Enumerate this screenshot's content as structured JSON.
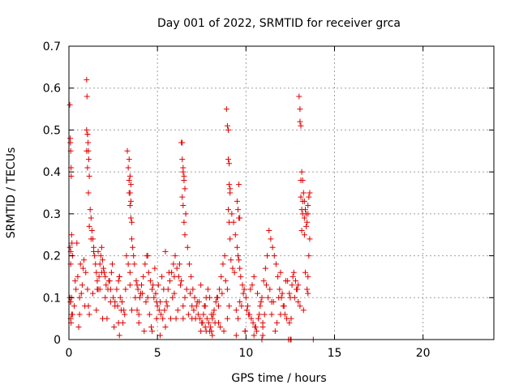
{
  "chart_data": {
    "type": "scatter",
    "title": "Day 001 of 2022, SRMTID for receiver grca",
    "xlabel": "GPS time / hours",
    "ylabel": "SRMTID / TECUs",
    "xlim": [
      0,
      24
    ],
    "ylim": [
      0,
      0.7
    ],
    "xticks": [
      0,
      5,
      10,
      15,
      20
    ],
    "xtick_labels": [
      "0",
      "5",
      "10",
      "15",
      "20"
    ],
    "yticks": [
      0,
      0.1,
      0.2,
      0.3,
      0.4,
      0.5,
      0.6,
      0.7
    ],
    "ytick_labels": [
      "0",
      "0.1",
      "0.2",
      "0.3",
      "0.4",
      "0.5",
      "0.6",
      "0.7"
    ],
    "grid": true,
    "marker": "+",
    "color": "#e00000",
    "series": [
      {
        "x": [
          0.05,
          0.07,
          0.08,
          0.1,
          0.12,
          0.13,
          0.15,
          0.17,
          0.2,
          0.05,
          0.08,
          0.1,
          0.12,
          0.06,
          0.1,
          0.15,
          0.3,
          0.4,
          0.5,
          0.6,
          0.7,
          0.8,
          0.95,
          1.0,
          1.02,
          1.05,
          1.08,
          1.1,
          1.12,
          1.15,
          1.2,
          1.25,
          1.3,
          1.35,
          1.4,
          1.45,
          1.5,
          1.55,
          1.6,
          1.65,
          1.7,
          1.75,
          1.8,
          1.85,
          1.9,
          1.95,
          2.0,
          2.05,
          2.1,
          2.2,
          2.3,
          2.4,
          2.5,
          2.6,
          2.7,
          2.8,
          2.9,
          3.0,
          3.1,
          3.2,
          3.3,
          3.35,
          3.4,
          3.45,
          3.5,
          3.55,
          3.6,
          3.65,
          3.7,
          3.8,
          3.9,
          4.0,
          4.1,
          4.2,
          4.3,
          4.4,
          4.5,
          4.6,
          4.7,
          4.8,
          4.9,
          5.0,
          5.1,
          5.2,
          5.3,
          5.4,
          5.5,
          5.6,
          5.7,
          5.8,
          5.9,
          6.0,
          6.1,
          6.2,
          6.3,
          6.35,
          6.4,
          6.45,
          6.5,
          6.55,
          6.6,
          6.7,
          6.8,
          6.9,
          7.0,
          7.1,
          7.2,
          7.3,
          7.4,
          7.5,
          7.6,
          7.7,
          7.8,
          7.9,
          8.0,
          8.1,
          8.2,
          8.3,
          8.4,
          8.5,
          8.6,
          8.7,
          8.8,
          8.9,
          8.95,
          9.0,
          9.05,
          9.1,
          9.2,
          9.3,
          9.4,
          9.5,
          9.55,
          9.6,
          9.65,
          9.7,
          9.8,
          9.9,
          10.0,
          10.1,
          10.2,
          10.3,
          10.4,
          10.5,
          10.6,
          10.7,
          10.8,
          10.9,
          11.0,
          11.1,
          11.2,
          11.3,
          11.4,
          11.5,
          11.6,
          11.7,
          11.8,
          11.9,
          12.0,
          12.1,
          12.2,
          12.3,
          12.4,
          12.5,
          12.6,
          12.7,
          12.8,
          12.9,
          13.0,
          13.05,
          13.1,
          13.15,
          13.2,
          13.25,
          13.3,
          13.35,
          13.4,
          13.45,
          13.5,
          13.55,
          13.6,
          0.2,
          0.6,
          1.1,
          1.6,
          2.15,
          2.6,
          3.05,
          3.55,
          4.05,
          4.55,
          5.05,
          5.55,
          6.05,
          6.55,
          7.05,
          7.55,
          8.05,
          8.55,
          9.05,
          9.55,
          10.05,
          10.55,
          11.05,
          11.55,
          12.05,
          12.55,
          13.05,
          0.35,
          0.85,
          1.35,
          1.85,
          2.35,
          2.85,
          3.35,
          3.85,
          4.35,
          4.85,
          5.35,
          5.85,
          6.35,
          6.85,
          7.35,
          7.85,
          8.35,
          8.85,
          9.35,
          9.85,
          10.35,
          10.85,
          11.35,
          11.85,
          12.35,
          12.85,
          13.35,
          0.45,
          0.9,
          1.4,
          1.9,
          2.45,
          2.95,
          3.45,
          3.95,
          4.45,
          4.95,
          5.45,
          5.95,
          6.45,
          6.95,
          7.45,
          7.95,
          8.45,
          8.95,
          9.45,
          9.95,
          10.45,
          10.95,
          11.45,
          11.95,
          12.45,
          12.95,
          13.45,
          0.55,
          1.05,
          1.55,
          2.05,
          2.55,
          3.15,
          3.75,
          4.25,
          4.75,
          5.25,
          5.75,
          6.25,
          6.75,
          7.25,
          7.75,
          8.25,
          8.75,
          9.25,
          9.75,
          10.25,
          10.75,
          11.25,
          11.75,
          12.25,
          12.75,
          13.25,
          0.65,
          1.15,
          1.65,
          2.25,
          2.75,
          3.25,
          3.85,
          4.15,
          4.65,
          5.15,
          5.65,
          6.15,
          6.65,
          7.15,
          7.65,
          8.15,
          8.65,
          9.15,
          9.65,
          10.15,
          10.65,
          11.15,
          11.65,
          12.15,
          12.65,
          13.15,
          13.55,
          0.75,
          1.25,
          1.75,
          2.35,
          2.85,
          3.45,
          3.95,
          4.45,
          4.95,
          5.45,
          5.95,
          6.45,
          6.95,
          7.45,
          7.95,
          8.45,
          8.95,
          9.45,
          9.95,
          10.45,
          10.95,
          11.45,
          11.95,
          12.45,
          12.95,
          13.5,
          1.0,
          1.05,
          3.4,
          3.45,
          3.5,
          6.4,
          6.45,
          6.5,
          9.0,
          9.05,
          9.1,
          9.6,
          9.65,
          13.05,
          13.1,
          13.2,
          13.3,
          13.4,
          13.5,
          13.6,
          0.1,
          0.1,
          0.15,
          1.0,
          1.05,
          1.1,
          1.15,
          3.4,
          3.45,
          3.5,
          3.55,
          6.4,
          6.45,
          6.5,
          6.55,
          9.0,
          9.05,
          9.1,
          9.5,
          9.55,
          9.6,
          13.1,
          13.15,
          13.2,
          13.3,
          12.5,
          12.55,
          10.9,
          10.95,
          8.05,
          8.1,
          7.7,
          7.75,
          5.15,
          4.7,
          2.8,
          2.85,
          13.5,
          13.8
        ],
        "y": [
          0.56,
          0.48,
          0.47,
          0.45,
          0.41,
          0.39,
          0.25,
          0.23,
          0.2,
          0.1,
          0.09,
          0.05,
          0.04,
          0.22,
          0.18,
          0.1,
          0.08,
          0.12,
          0.15,
          0.06,
          0.11,
          0.17,
          0.16,
          0.62,
          0.58,
          0.49,
          0.47,
          0.45,
          0.43,
          0.39,
          0.31,
          0.29,
          0.26,
          0.24,
          0.22,
          0.2,
          0.18,
          0.16,
          0.14,
          0.12,
          0.15,
          0.18,
          0.2,
          0.22,
          0.19,
          0.17,
          0.16,
          0.15,
          0.13,
          0.12,
          0.14,
          0.16,
          0.1,
          0.08,
          0.12,
          0.14,
          0.1,
          0.09,
          0.07,
          0.12,
          0.45,
          0.41,
          0.38,
          0.35,
          0.33,
          0.28,
          0.22,
          0.2,
          0.18,
          0.14,
          0.12,
          0.1,
          0.13,
          0.15,
          0.18,
          0.2,
          0.16,
          0.14,
          0.12,
          0.1,
          0.11,
          0.08,
          0.07,
          0.06,
          0.05,
          0.07,
          0.09,
          0.12,
          0.14,
          0.16,
          0.18,
          0.2,
          0.17,
          0.15,
          0.13,
          0.47,
          0.43,
          0.41,
          0.39,
          0.36,
          0.3,
          0.22,
          0.18,
          0.15,
          0.12,
          0.1,
          0.08,
          0.06,
          0.05,
          0.04,
          0.06,
          0.08,
          0.05,
          0.04,
          0.03,
          0.05,
          0.07,
          0.09,
          0.1,
          0.12,
          0.15,
          0.18,
          0.2,
          0.55,
          0.51,
          0.43,
          0.37,
          0.35,
          0.3,
          0.28,
          0.25,
          0.22,
          0.2,
          0.19,
          0.17,
          0.15,
          0.13,
          0.12,
          0.1,
          0.08,
          0.06,
          0.05,
          0.04,
          0.03,
          0.02,
          0.05,
          0.08,
          0.1,
          0.14,
          0.17,
          0.2,
          0.26,
          0.24,
          0.22,
          0.2,
          0.18,
          0.15,
          0.12,
          0.1,
          0.08,
          0.06,
          0.05,
          0.0,
          0.1,
          0.13,
          0.16,
          0.14,
          0.12,
          0.58,
          0.55,
          0.51,
          0.4,
          0.38,
          0.35,
          0.33,
          0.31,
          0.3,
          0.28,
          0.32,
          0.34,
          0.35,
          0.06,
          0.1,
          0.08,
          0.12,
          0.05,
          0.09,
          0.04,
          0.07,
          0.11,
          0.06,
          0.13,
          0.08,
          0.05,
          0.1,
          0.07,
          0.04,
          0.06,
          0.03,
          0.08,
          0.05,
          0.07,
          0.03,
          0.06,
          0.09,
          0.11,
          0.05,
          0.08,
          0.14,
          0.19,
          0.11,
          0.16,
          0.12,
          0.15,
          0.18,
          0.13,
          0.09,
          0.17,
          0.12,
          0.1,
          0.14,
          0.11,
          0.09,
          0.12,
          0.1,
          0.14,
          0.16,
          0.11,
          0.13,
          0.09,
          0.12,
          0.1,
          0.14,
          0.12,
          0.16,
          0.23,
          0.08,
          0.21,
          0.05,
          0.18,
          0.07,
          0.16,
          0.04,
          0.2,
          0.09,
          0.03,
          0.15,
          0.08,
          0.05,
          0.13,
          0.02,
          0.08,
          0.12,
          0.07,
          0.02,
          0.15,
          0.04,
          0.09,
          0.06,
          0.11,
          0.09,
          0.12,
          0.03,
          0.12,
          0.07,
          0.1,
          0.03,
          0.06,
          0.1,
          0.02,
          0.13,
          0.15,
          0.05,
          0.18,
          0.06,
          0.09,
          0.1,
          0.04,
          0.02,
          0.17,
          0.08,
          0.12,
          0.06,
          0.1,
          0.04,
          0.14,
          0.1,
          0.07,
          0.18,
          0.06,
          0.21,
          0.14,
          0.08,
          0.2,
          0.07,
          0.11,
          0.03,
          0.09,
          0.16,
          0.07,
          0.12,
          0.05,
          0.08,
          0.06,
          0.11,
          0.19,
          0.09,
          0.06,
          0.11,
          0.13,
          0.02,
          0.08,
          0.15,
          0.26,
          0.2,
          0.13,
          0.24,
          0.12,
          0.09,
          0.15,
          0.13,
          0.06,
          0.1,
          0.05,
          0.21,
          0.11,
          0.05,
          0.08,
          0.02,
          0.1,
          0.04,
          0.05,
          0.01,
          0.02,
          0.01,
          0.03,
          0.06,
          0.16,
          0.04,
          0.13,
          0.11,
          0.5,
          0.49,
          0.43,
          0.39,
          0.37,
          0.47,
          0.4,
          0.38,
          0.5,
          0.42,
          0.36,
          0.37,
          0.29,
          0.52,
          0.38,
          0.33,
          0.29,
          0.27,
          0.3,
          0.24,
          0.21,
          0.09,
          0.06,
          0.45,
          0.41,
          0.35,
          0.27,
          0.35,
          0.32,
          0.29,
          0.24,
          0.34,
          0.32,
          0.28,
          0.25,
          0.31,
          0.28,
          0.24,
          0.33,
          0.31,
          0.29,
          0.34,
          0.31,
          0.3,
          0.25,
          0.0,
          0.0,
          0.0,
          0.01,
          0.02,
          0.01,
          0.03,
          0.02,
          0.01,
          0.02,
          0.04,
          0.01,
          0.15,
          0.0
        ]
      }
    ]
  }
}
